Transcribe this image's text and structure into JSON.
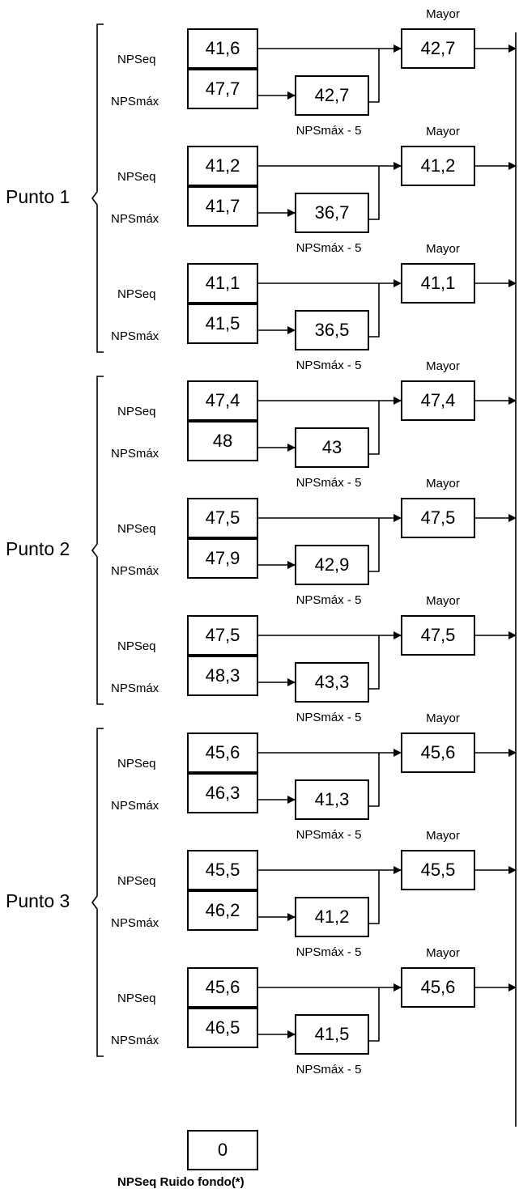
{
  "labels": {
    "eq": "NPSeq",
    "max": "NPSmáx",
    "minus": "NPSmáx - 5",
    "mayor": "Mayor"
  },
  "points": [
    {
      "name": "Punto 1",
      "rows": [
        {
          "eq": "41,6",
          "max": "47,7",
          "minus": "42,7",
          "mayor": "42,7"
        },
        {
          "eq": "41,2",
          "max": "41,7",
          "minus": "36,7",
          "mayor": "41,2"
        },
        {
          "eq": "41,1",
          "max": "41,5",
          "minus": "36,5",
          "mayor": "41,1"
        }
      ]
    },
    {
      "name": "Punto 2",
      "rows": [
        {
          "eq": "47,4",
          "max": "48",
          "minus": "43",
          "mayor": "47,4"
        },
        {
          "eq": "47,5",
          "max": "47,9",
          "minus": "42,9",
          "mayor": "47,5"
        },
        {
          "eq": "47,5",
          "max": "48,3",
          "minus": "43,3",
          "mayor": "47,5"
        }
      ]
    },
    {
      "name": "Punto 3",
      "rows": [
        {
          "eq": "45,6",
          "max": "46,3",
          "minus": "41,3",
          "mayor": "45,6"
        },
        {
          "eq": "45,5",
          "max": "46,2",
          "minus": "41,2",
          "mayor": "45,5"
        },
        {
          "eq": "45,6",
          "max": "46,5",
          "minus": "41,5",
          "mayor": "45,6"
        }
      ]
    }
  ],
  "background": {
    "value": "0",
    "label": "NPSeq Ruido fondo(*)"
  }
}
